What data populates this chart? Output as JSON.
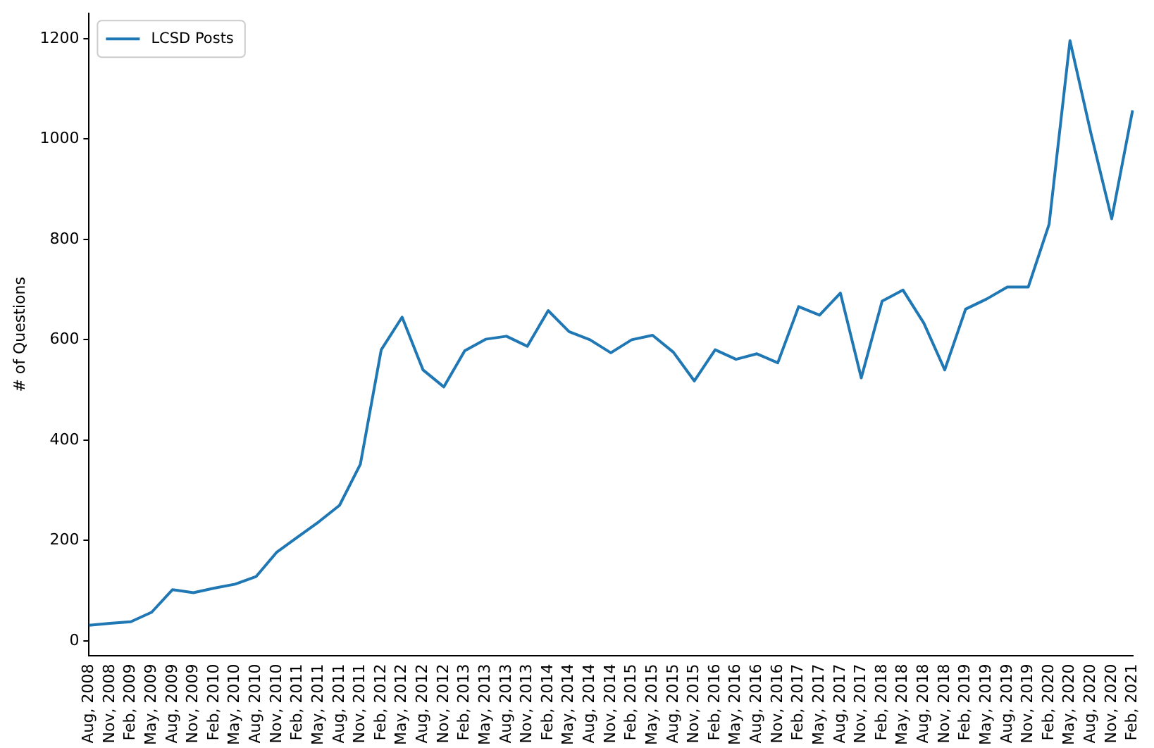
{
  "chart_data": {
    "type": "line",
    "ylabel": "# of Questions",
    "legend": "top left",
    "grid": false,
    "ylim": [
      -29,
      1250
    ],
    "yticks": [
      0,
      200,
      400,
      600,
      800,
      1000,
      1200
    ],
    "categories": [
      "Aug, 2008",
      "Nov, 2008",
      "Feb, 2009",
      "May, 2009",
      "Aug, 2009",
      "Nov, 2009",
      "Feb, 2010",
      "May, 2010",
      "Aug, 2010",
      "Nov, 2010",
      "Feb, 2011",
      "May, 2011",
      "Aug, 2011",
      "Nov, 2011",
      "Feb, 2012",
      "May, 2012",
      "Aug, 2012",
      "Nov, 2012",
      "Feb, 2013",
      "May, 2013",
      "Aug, 2013",
      "Nov, 2013",
      "Feb, 2014",
      "May, 2014",
      "Aug, 2014",
      "Nov, 2014",
      "Feb, 2015",
      "May, 2015",
      "Aug, 2015",
      "Nov, 2015",
      "Feb, 2016",
      "May, 2016",
      "Aug, 2016",
      "Nov, 2016",
      "Feb, 2017",
      "May, 2017",
      "Aug, 2017",
      "Nov, 2017",
      "Feb, 2018",
      "May, 2018",
      "Aug, 2018",
      "Nov, 2018",
      "Feb, 2019",
      "May, 2019",
      "Aug, 2019",
      "Nov, 2019",
      "Feb, 2020",
      "May, 2020",
      "Aug, 2020",
      "Nov, 2020",
      "Feb, 2021"
    ],
    "series": [
      {
        "name": "LCSD Posts",
        "color": "#1f77b4",
        "values": [
          31,
          35,
          38,
          57,
          102,
          96,
          105,
          113,
          128,
          177,
          207,
          237,
          270,
          352,
          580,
          645,
          540,
          506,
          578,
          601,
          607,
          587,
          658,
          616,
          600,
          574,
          600,
          609,
          575,
          518,
          580,
          561,
          572,
          554,
          666,
          649,
          693,
          524,
          677,
          699,
          633,
          540,
          661,
          681,
          705,
          705,
          830,
          1196,
          1012,
          841,
          1057
        ]
      }
    ]
  }
}
